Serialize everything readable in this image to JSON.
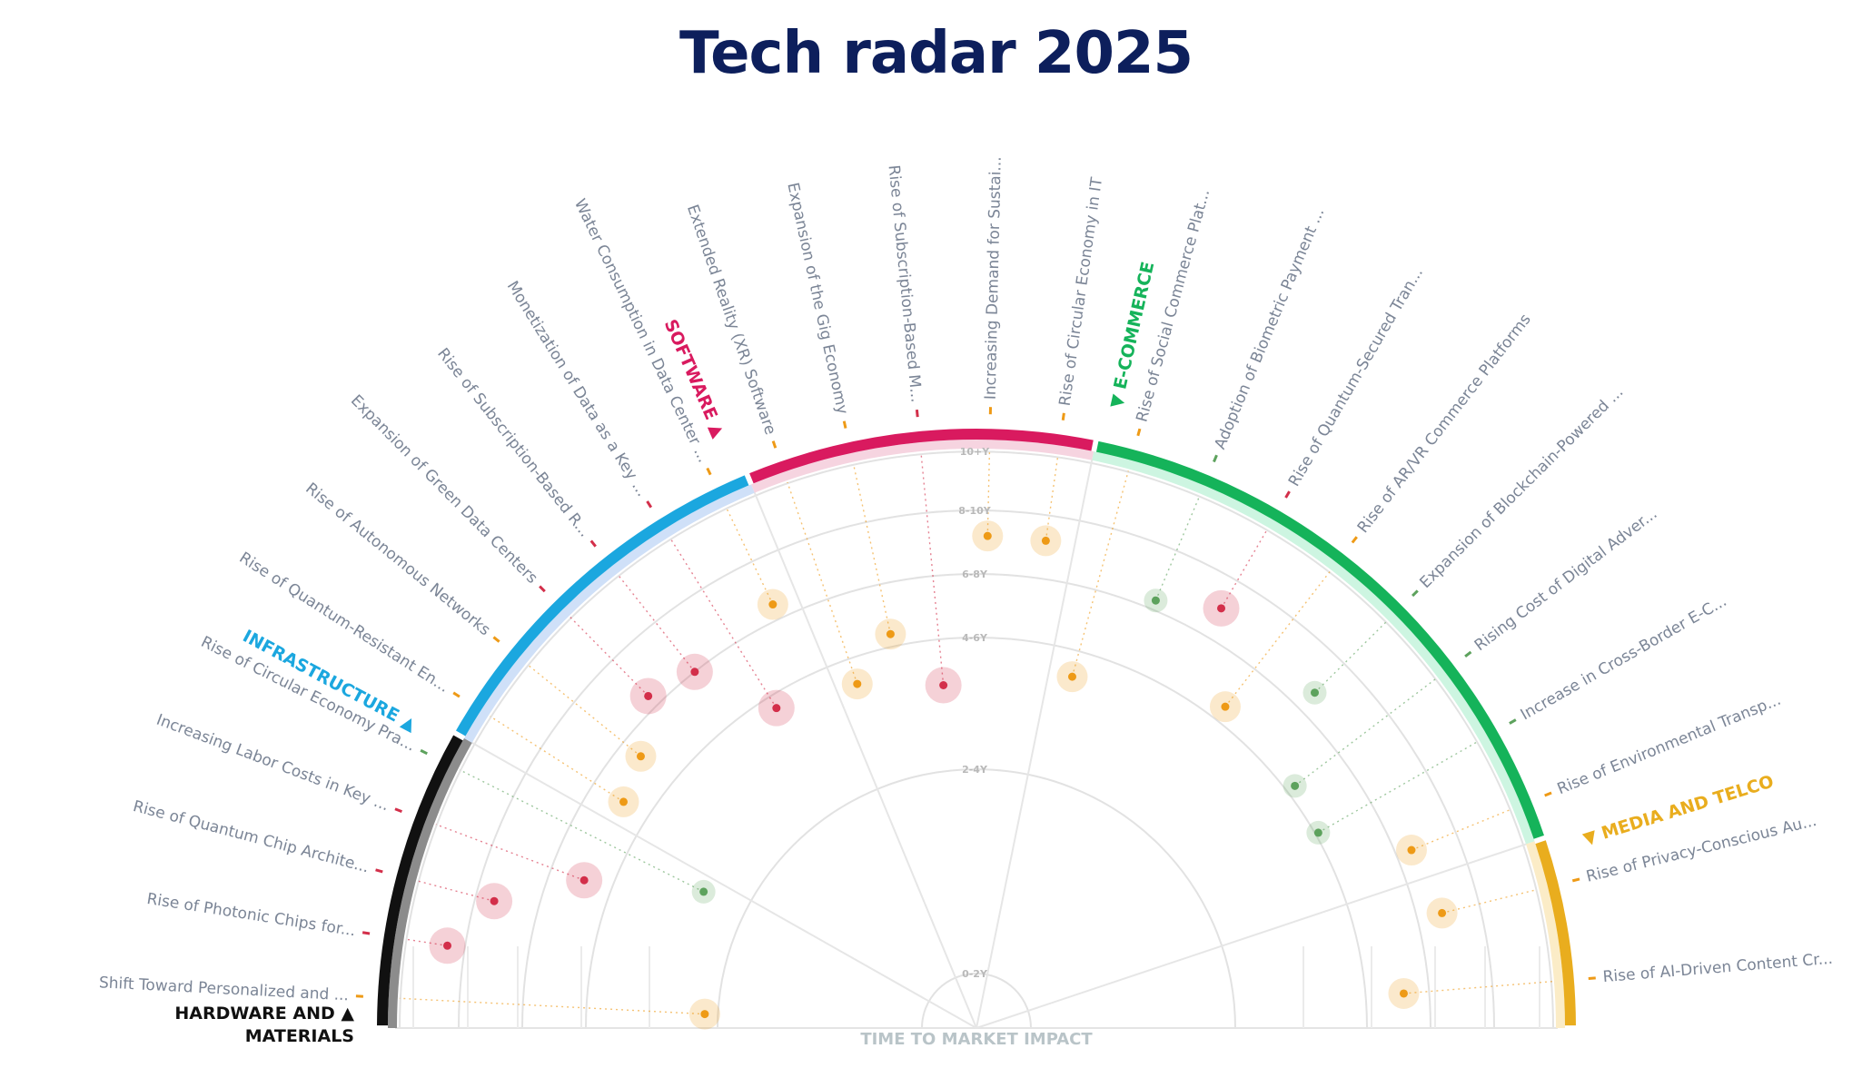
{
  "title": "Tech radar 2025",
  "axis_label": "TIME TO MARKET IMPACT",
  "rings": [
    "0-2Y",
    "2-4Y",
    "4-6Y",
    "6-8Y",
    "8-10Y",
    "10+Y"
  ],
  "colors": {
    "high": "#d32f4a",
    "medium": "#ee9a16",
    "low": "#5da25d",
    "title": "#0d1f5c"
  },
  "sectors": [
    {
      "name": "HARDWARE AND MATERIALS",
      "lines": [
        "HARDWARE AND ▲",
        "MATERIALS"
      ],
      "color": "#111111",
      "light": "#8c8c8c",
      "trends": [
        {
          "label": "Shift Toward Personalized and ...",
          "impact": "medium",
          "ring": 1.1
        },
        {
          "label": "Rise of Photonic Chips for...",
          "impact": "high",
          "ring": 4.3
        },
        {
          "label": "Rise of Quantum Chip Archite...",
          "impact": "high",
          "ring": 3.7
        },
        {
          "label": "Increasing Labor Costs in Key ...",
          "impact": "high",
          "ring": 2.45
        },
        {
          "label": "Rise of Circular Economy Pra...",
          "impact": "low",
          "ring": 1.35
        }
      ]
    },
    {
      "name": "INFRASTRUCTURE",
      "lines": [
        "INFRASTRUCTURE ▲"
      ],
      "color": "#1ba7df",
      "light": "#cfe0f8",
      "trends": [
        {
          "label": "Rise of Quantum-Resistant En...",
          "impact": "medium",
          "ring": 2.45
        },
        {
          "label": "Rise of Autonomous Networks",
          "impact": "medium",
          "ring": 2.65
        },
        {
          "label": "Expansion of Green Data Centers",
          "impact": "high",
          "ring": 3.2
        },
        {
          "label": "Rise of Subscription-Based R...",
          "impact": "high",
          "ring": 3.0
        },
        {
          "label": "Monetization of Data as a Key ...",
          "impact": "high",
          "ring": 1.9
        },
        {
          "label": "Water Consumption in Data Center ...",
          "impact": "medium",
          "ring": 3.25
        }
      ]
    },
    {
      "name": "SOFTWARE",
      "lines": [
        "SOFTWARE ▲"
      ],
      "color": "#d91a5f",
      "light": "#f6d4e0",
      "trends": [
        {
          "label": "Extended Reality (XR) Software",
          "impact": "medium",
          "ring": 1.8
        },
        {
          "label": "Expansion of the Gig Economy",
          "impact": "medium",
          "ring": 2.2
        },
        {
          "label": "Rise of Subscription-Based M...",
          "impact": "high",
          "ring": 1.65
        },
        {
          "label": "Increasing Demand for Sustai...",
          "impact": "medium",
          "ring": 3.6
        },
        {
          "label": "Rise of Circular Economy in IT",
          "impact": "medium",
          "ring": 3.6
        }
      ]
    },
    {
      "name": "E-COMMERCE",
      "lines": [
        "▼ E-COMMERCE"
      ],
      "color": "#15b35a",
      "light": "#cdf5e1",
      "trends": [
        {
          "label": "Rise of Social Commerce Plat...",
          "impact": "medium",
          "ring": 1.8
        },
        {
          "label": "Adoption of Biometric Payment ...",
          "impact": "low",
          "ring": 3.15
        },
        {
          "label": "Rise of Quantum-Secured Tran...",
          "impact": "high",
          "ring": 3.5
        },
        {
          "label": "Rise of AR/VR Commerce Platforms",
          "impact": "medium",
          "ring": 2.25
        },
        {
          "label": "Expansion of Blockchain-Powered ...",
          "impact": "low",
          "ring": 3.35
        },
        {
          "label": "Rising Cost of Digital Adver...",
          "impact": "low",
          "ring": 2.15
        },
        {
          "label": "Increase in Cross-Border E-C...",
          "impact": "low",
          "ring": 2.05
        },
        {
          "label": "Rise of Environmental Transp...",
          "impact": "medium",
          "ring": 3.25
        }
      ]
    },
    {
      "name": "MEDIA AND TELCO",
      "lines": [
        "▼ MEDIA AND TELCO"
      ],
      "color": "#e9ad1e",
      "light": "#fbecc7",
      "trends": [
        {
          "label": "Rise of Privacy-Conscious Au...",
          "impact": "medium",
          "ring": 3.4
        },
        {
          "label": "Rise of AI-Driven Content Cr...",
          "impact": "medium",
          "ring": 2.6
        }
      ]
    }
  ]
}
